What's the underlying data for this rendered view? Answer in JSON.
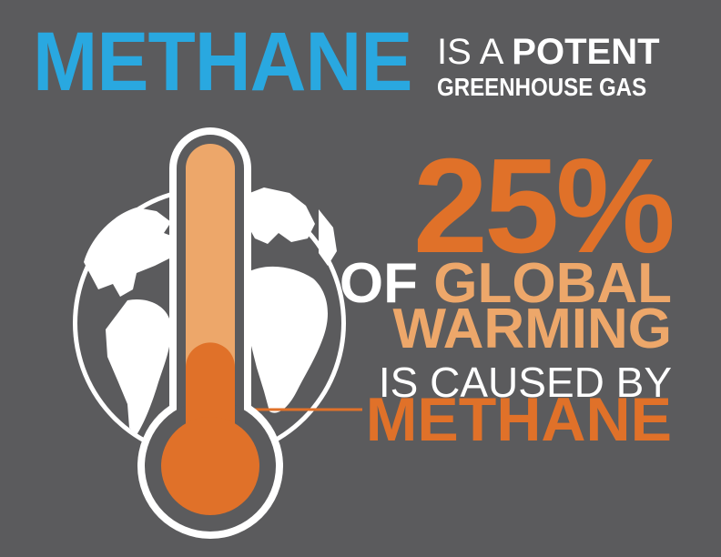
{
  "header": {
    "title_word": "METHANE",
    "title_is_a": "IS A",
    "title_potent": "POTENT",
    "title_line2": "GREENHOUSE GAS"
  },
  "stat": {
    "percent": "25%",
    "of": "OF",
    "global": "GLOBAL",
    "warming": "WARMING",
    "caused_by": "IS CAUSED BY",
    "methane": "METHANE"
  },
  "illustration": {
    "globe": "globe-icon",
    "thermometer": "thermometer-icon",
    "thermometer_level": 0.4
  },
  "colors": {
    "background": "#5b5b5d",
    "blue": "#29a8e0",
    "orange": "#e07129",
    "light_orange": "#eda76a",
    "white": "#ffffff"
  }
}
